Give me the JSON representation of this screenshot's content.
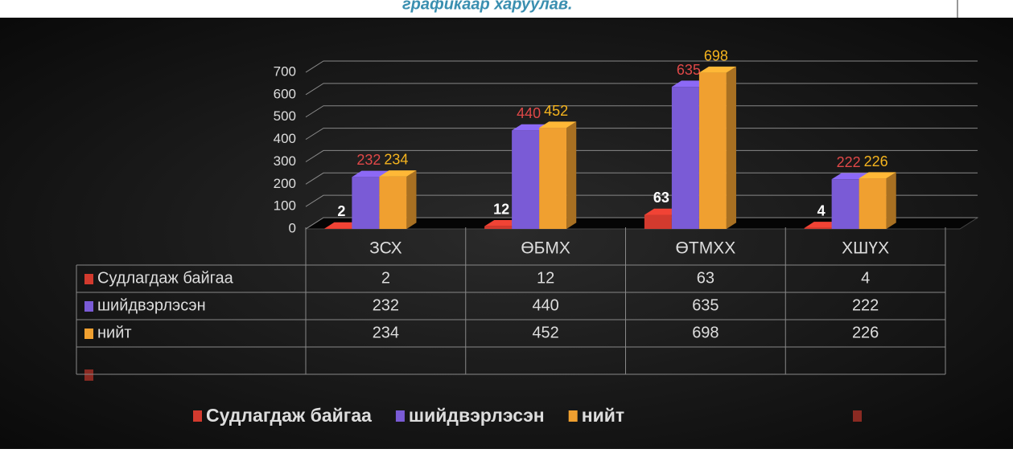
{
  "caption": "графикаар харуулав.",
  "chart_data": {
    "type": "bar3d",
    "categories": [
      "ЗСХ",
      "ӨБМХ",
      "ӨТМХХ",
      "ХШҮХ"
    ],
    "series": [
      {
        "name": "Судлагдаж байгаа",
        "color": "#d23a2e",
        "label_color": "#ffffff",
        "values": [
          2,
          12,
          63,
          4
        ]
      },
      {
        "name": "шийдвэрлэсэн",
        "color": "#7a5bd6",
        "label_color": "#e04848",
        "values": [
          232,
          440,
          635,
          222
        ]
      },
      {
        "name": "нийт",
        "color": "#f0a030",
        "label_color": "#f5b41e",
        "values": [
          234,
          452,
          698,
          226
        ]
      }
    ],
    "ylim": [
      0,
      700
    ],
    "yticks": [
      0,
      100,
      200,
      300,
      400,
      500,
      600,
      700
    ],
    "grid": true,
    "legend": "bottom"
  }
}
